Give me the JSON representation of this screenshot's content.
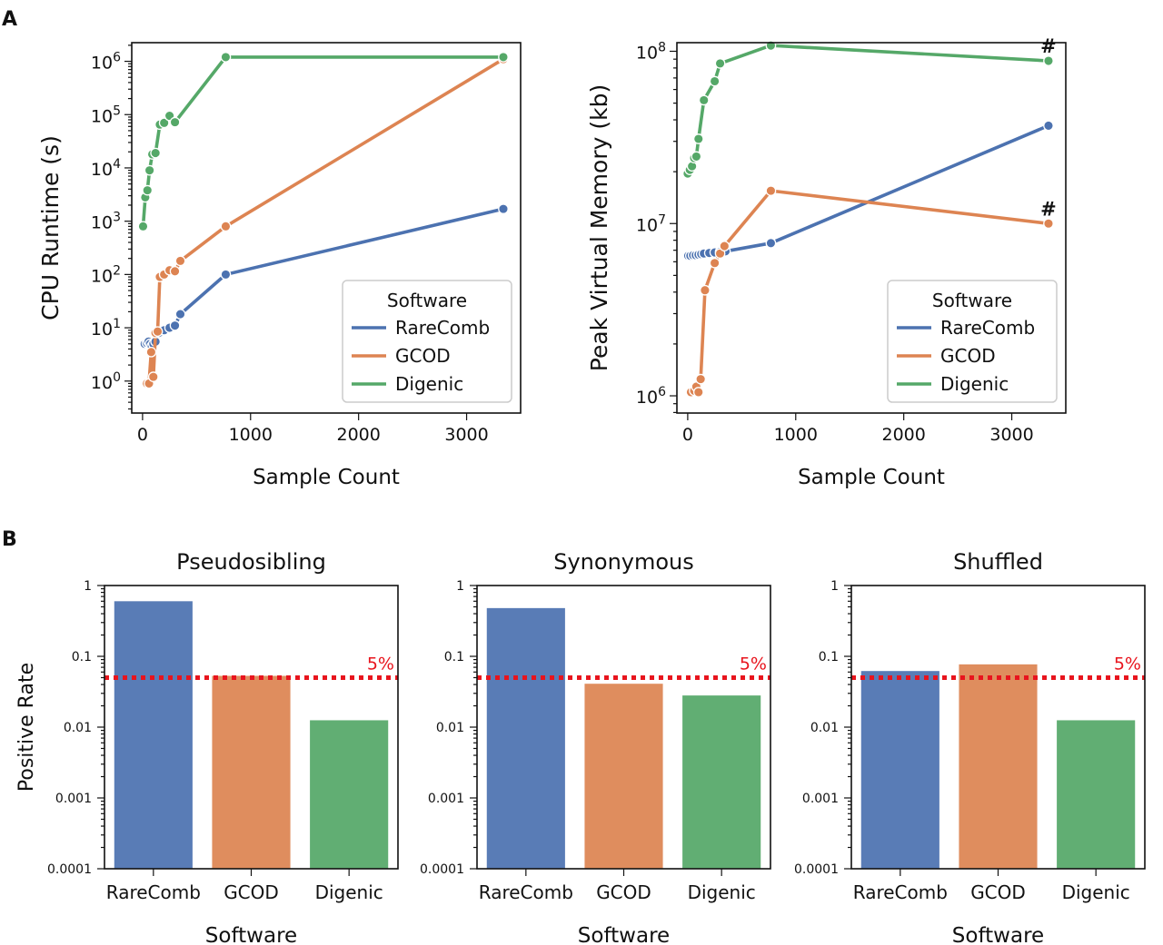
{
  "panel_labels": [
    "A",
    "B"
  ],
  "colors": {
    "RareComb": "#4c72b0",
    "GCOD": "#dd8452",
    "Digenic": "#55a868",
    "threshold": "#e8141d"
  },
  "chart_data": [
    {
      "id": "cpu",
      "type": "line",
      "title": "",
      "xlabel": "Sample Count",
      "ylabel": "CPU Runtime (s)",
      "yscale": "log",
      "xlim": [
        -100,
        3500
      ],
      "ylim_log10": [
        -0.6,
        6.35
      ],
      "xticks": [
        0,
        1000,
        2000,
        3000
      ],
      "yticks_base": "10",
      "yticks_exp": [
        "0",
        "1",
        "2",
        "3",
        "4",
        "5",
        "6"
      ],
      "legend": {
        "title": "Software",
        "position": "lower-right",
        "entries": [
          "RareComb",
          "GCOD",
          "Digenic"
        ]
      },
      "series": [
        {
          "name": "RareComb",
          "x": [
            20,
            40,
            55,
            70,
            85,
            100,
            120,
            150,
            200,
            250,
            300,
            350,
            770,
            3340
          ],
          "y": [
            5,
            5.2,
            5.5,
            5,
            4.5,
            5,
            5.5,
            8,
            9,
            10,
            11,
            18,
            100,
            1700
          ]
        },
        {
          "name": "GCOD",
          "x": [
            40,
            60,
            80,
            100,
            120,
            140,
            160,
            200,
            250,
            300,
            350,
            770,
            3340
          ],
          "y": [
            0.9,
            0.9,
            3.5,
            1.2,
            8,
            8.5,
            90,
            100,
            120,
            115,
            180,
            800,
            1100000
          ]
        },
        {
          "name": "Digenic",
          "x": [
            5,
            25,
            45,
            65,
            90,
            120,
            160,
            200,
            250,
            300,
            770,
            3340
          ],
          "y": [
            800,
            2800,
            3800,
            9000,
            18000,
            19000,
            65000,
            70000,
            95000,
            72000,
            1200000,
            1200000
          ]
        }
      ]
    },
    {
      "id": "memory",
      "type": "line",
      "title": "",
      "xlabel": "Sample Count",
      "ylabel": "Peak Virtual Memory (kb)",
      "yscale": "log",
      "xlim": [
        -100,
        3500
      ],
      "ylim_log10": [
        5.9,
        8.05
      ],
      "xticks": [
        0,
        1000,
        2000,
        3000
      ],
      "yticks_base": "10",
      "yticks_exp": [
        "6",
        "7",
        "8"
      ],
      "annotations": [
        {
          "text": "#",
          "series": "Digenic",
          "x": 3340
        },
        {
          "text": "#",
          "series": "GCOD",
          "x": 3340
        }
      ],
      "legend": {
        "title": "Software",
        "position": "lower-right",
        "entries": [
          "RareComb",
          "GCOD",
          "Digenic"
        ]
      },
      "series": [
        {
          "name": "RareComb",
          "x": [
            5,
            25,
            50,
            75,
            100,
            125,
            150,
            200,
            250,
            300,
            350,
            770,
            3340
          ],
          "y": [
            6500000,
            6500000,
            6550000,
            6550000,
            6600000,
            6650000,
            6700000,
            6750000,
            6800000,
            6850000,
            6900000,
            7700000,
            37000000
          ]
        },
        {
          "name": "GCOD",
          "x": [
            30,
            60,
            80,
            100,
            120,
            160,
            250,
            300,
            340,
            770,
            3340
          ],
          "y": [
            1050000,
            1070000,
            1130000,
            1050000,
            1250000,
            4100000,
            5900000,
            6700000,
            7400000,
            15500000,
            10000000
          ]
        },
        {
          "name": "Digenic",
          "x": [
            0,
            20,
            40,
            60,
            80,
            100,
            150,
            250,
            300,
            770,
            3340
          ],
          "y": [
            19500000,
            20500000,
            21500000,
            24000000,
            24500000,
            31000000,
            52000000,
            67000000,
            85000000,
            108000000,
            88000000
          ]
        }
      ]
    },
    {
      "id": "pseudosibling",
      "type": "bar",
      "title": "Pseudosibling",
      "xlabel": "Software",
      "ylabel": "Positive Rate",
      "yscale": "log",
      "ylim": [
        0.0001,
        1
      ],
      "ytick_labels": [
        "0.0001",
        "0.001",
        "0.01",
        "0.1",
        "1"
      ],
      "categories": [
        "RareComb",
        "GCOD",
        "Digenic"
      ],
      "values": [
        0.6,
        0.053,
        0.0125
      ],
      "threshold": {
        "value": 0.05,
        "label": "5%"
      }
    },
    {
      "id": "synonymous",
      "type": "bar",
      "title": "Synonymous",
      "xlabel": "Software",
      "ylabel": "",
      "yscale": "log",
      "ylim": [
        0.0001,
        1
      ],
      "ytick_labels": [
        "0.0001",
        "0.001",
        "0.01",
        "0.1",
        "1"
      ],
      "categories": [
        "RareComb",
        "GCOD",
        "Digenic"
      ],
      "values": [
        0.48,
        0.041,
        0.028
      ],
      "threshold": {
        "value": 0.05,
        "label": "5%"
      }
    },
    {
      "id": "shuffled",
      "type": "bar",
      "title": "Shuffled",
      "xlabel": "Software",
      "ylabel": "",
      "yscale": "log",
      "ylim": [
        0.0001,
        1
      ],
      "ytick_labels": [
        "0.0001",
        "0.001",
        "0.01",
        "0.1",
        "1"
      ],
      "categories": [
        "RareComb",
        "GCOD",
        "Digenic"
      ],
      "values": [
        0.062,
        0.077,
        0.0125
      ],
      "threshold": {
        "value": 0.05,
        "label": "5%"
      }
    }
  ]
}
